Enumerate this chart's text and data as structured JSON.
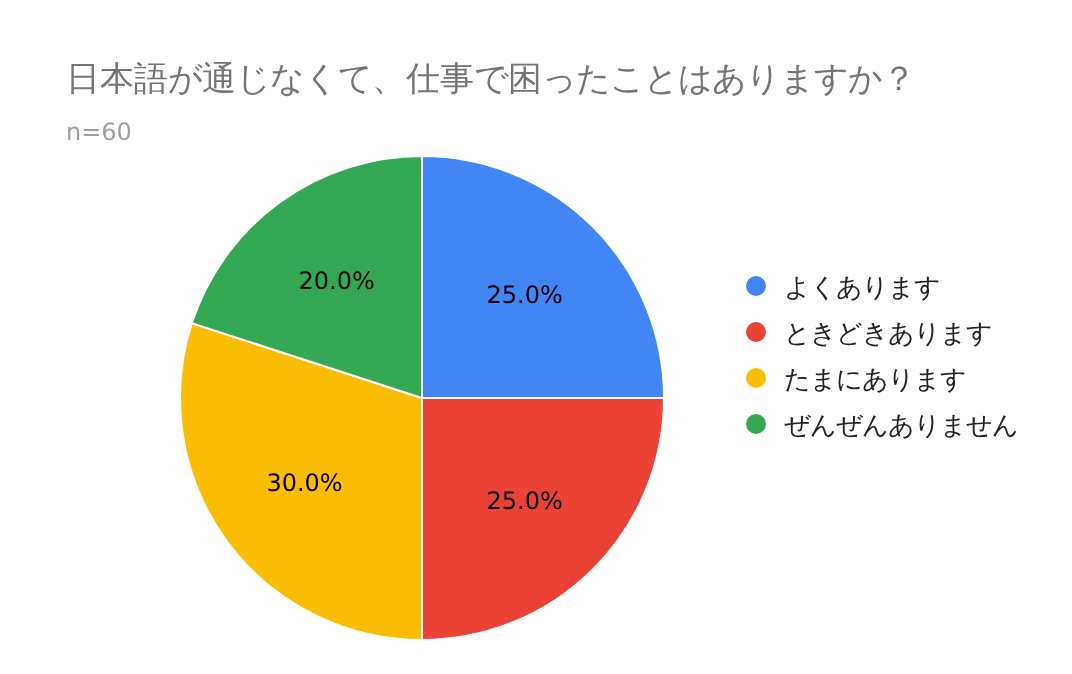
{
  "chart_data": {
    "type": "pie",
    "title": "日本語が通じなくて、仕事で困ったことはありますか？",
    "subtitle": "n=60",
    "categories": [
      "よくあります",
      "ときどきあります",
      "たまにあります",
      "ぜんぜんありません"
    ],
    "values": [
      25,
      25,
      30,
      20
    ],
    "colors": [
      "#4285f4",
      "#ea4335",
      "#fbbc04",
      "#34a853"
    ],
    "value_labels": [
      "25.0%",
      "25.0%",
      "30.0%",
      "20.0%"
    ],
    "legend": "right"
  }
}
